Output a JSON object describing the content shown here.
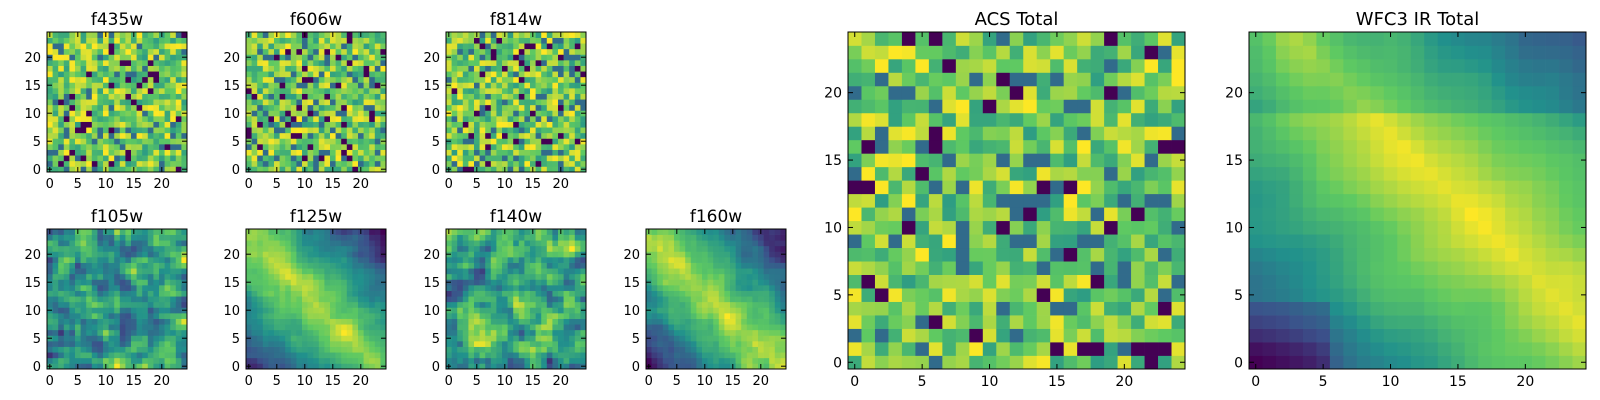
{
  "chart_data": {
    "type": "heatmap",
    "colormap": "viridis",
    "colors": [
      "#440154",
      "#3b528b",
      "#21918c",
      "#5ec962",
      "#fde725"
    ],
    "panels": [
      {
        "title": "f435w",
        "xticks": [
          0,
          5,
          10,
          15,
          20
        ],
        "yticks": [
          0,
          5,
          10,
          15,
          20
        ],
        "xlim": [
          0,
          24
        ],
        "ylim": [
          0,
          24
        ],
        "pattern": "noise",
        "seed": 11
      },
      {
        "title": "f606w",
        "xticks": [
          0,
          5,
          10,
          15,
          20
        ],
        "yticks": [
          0,
          5,
          10,
          15,
          20
        ],
        "xlim": [
          0,
          24
        ],
        "ylim": [
          0,
          24
        ],
        "pattern": "noise",
        "seed": 23
      },
      {
        "title": "f814w",
        "xticks": [
          0,
          5,
          10,
          15,
          20
        ],
        "yticks": [
          0,
          5,
          10,
          15,
          20
        ],
        "xlim": [
          0,
          24
        ],
        "ylim": [
          0,
          24
        ],
        "pattern": "noise",
        "seed": 37
      },
      {
        "title": "f105w",
        "xticks": [
          0,
          5,
          10,
          15,
          20
        ],
        "yticks": [
          0,
          5,
          10,
          15,
          20
        ],
        "xlim": [
          0,
          24
        ],
        "ylim": [
          0,
          24
        ],
        "pattern": "patchy",
        "seed": 41
      },
      {
        "title": "f125w",
        "xticks": [
          0,
          5,
          10,
          15,
          20
        ],
        "yticks": [
          0,
          5,
          10,
          15,
          20
        ],
        "xlim": [
          0,
          24
        ],
        "ylim": [
          0,
          24
        ],
        "pattern": "diagonal-band",
        "seed": 53
      },
      {
        "title": "f140w",
        "xticks": [
          0,
          5,
          10,
          15,
          20
        ],
        "yticks": [
          0,
          5,
          10,
          15,
          20
        ],
        "xlim": [
          0,
          24
        ],
        "ylim": [
          0,
          24
        ],
        "pattern": "patchy",
        "seed": 67
      },
      {
        "title": "f160w",
        "xticks": [
          0,
          5,
          10,
          15,
          20
        ],
        "yticks": [
          0,
          5,
          10,
          15,
          20
        ],
        "xlim": [
          0,
          24
        ],
        "ylim": [
          0,
          24
        ],
        "pattern": "diagonal-band",
        "seed": 79
      },
      {
        "title": "ACS Total",
        "xticks": [
          0,
          5,
          10,
          15,
          20
        ],
        "yticks": [
          0,
          5,
          10,
          15,
          20
        ],
        "xlim": [
          0,
          24
        ],
        "ylim": [
          0,
          24
        ],
        "pattern": "noise",
        "seed": 83
      },
      {
        "title": "WFC3 IR Total",
        "xticks": [
          0,
          5,
          10,
          15,
          20
        ],
        "yticks": [
          0,
          5,
          10,
          15,
          20
        ],
        "xlim": [
          0,
          24
        ],
        "ylim": [
          0,
          24
        ],
        "pattern": "diagonal-smooth",
        "seed": 97
      }
    ]
  }
}
